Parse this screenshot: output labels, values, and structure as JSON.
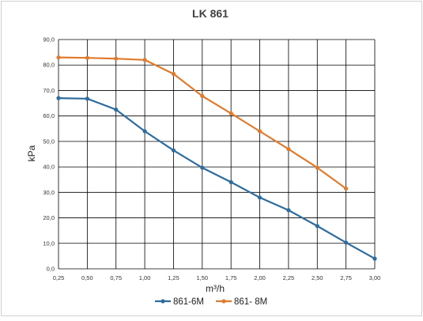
{
  "chart_data": {
    "type": "line",
    "title": "LK 861",
    "xlabel": "m³/h",
    "ylabel": "kPa",
    "x": [
      0.25,
      0.5,
      0.75,
      1.0,
      1.25,
      1.5,
      1.75,
      2.0,
      2.25,
      2.5,
      2.75,
      3.0
    ],
    "x_tick_labels": [
      "0,25",
      "0,50",
      "0,75",
      "1,00",
      "1,25",
      "1,50",
      "1,75",
      "2,00",
      "2,25",
      "2,50",
      "2,75",
      "3,00"
    ],
    "y_tick_values": [
      0,
      10,
      20,
      30,
      40,
      50,
      60,
      70,
      80,
      90
    ],
    "y_tick_labels": [
      "0,0",
      "10,0",
      "20,0",
      "30,0",
      "40,0",
      "50,0",
      "60,0",
      "70,0",
      "80,0",
      "90,0"
    ],
    "xlim": [
      0.25,
      3.0
    ],
    "ylim": [
      0,
      90
    ],
    "grid": true,
    "legend_position": "bottom",
    "series": [
      {
        "name": "861-6M",
        "color": "#2e6c9e",
        "x": [
          0.25,
          0.5,
          0.75,
          1.0,
          1.25,
          1.5,
          1.75,
          2.0,
          2.25,
          2.5,
          2.75,
          3.0
        ],
        "values": [
          67,
          66.8,
          62.5,
          54,
          46.5,
          39.7,
          34,
          28,
          23,
          16.8,
          10.3,
          4
        ]
      },
      {
        "name": "861- 8M",
        "color": "#e07b2e",
        "x": [
          0.25,
          0.5,
          0.75,
          1.0,
          1.25,
          1.5,
          1.75,
          2.0,
          2.25,
          2.5,
          2.75
        ],
        "values": [
          83,
          82.8,
          82.5,
          82,
          76.5,
          67.8,
          61,
          54,
          47,
          39.7,
          31.5
        ]
      }
    ]
  }
}
